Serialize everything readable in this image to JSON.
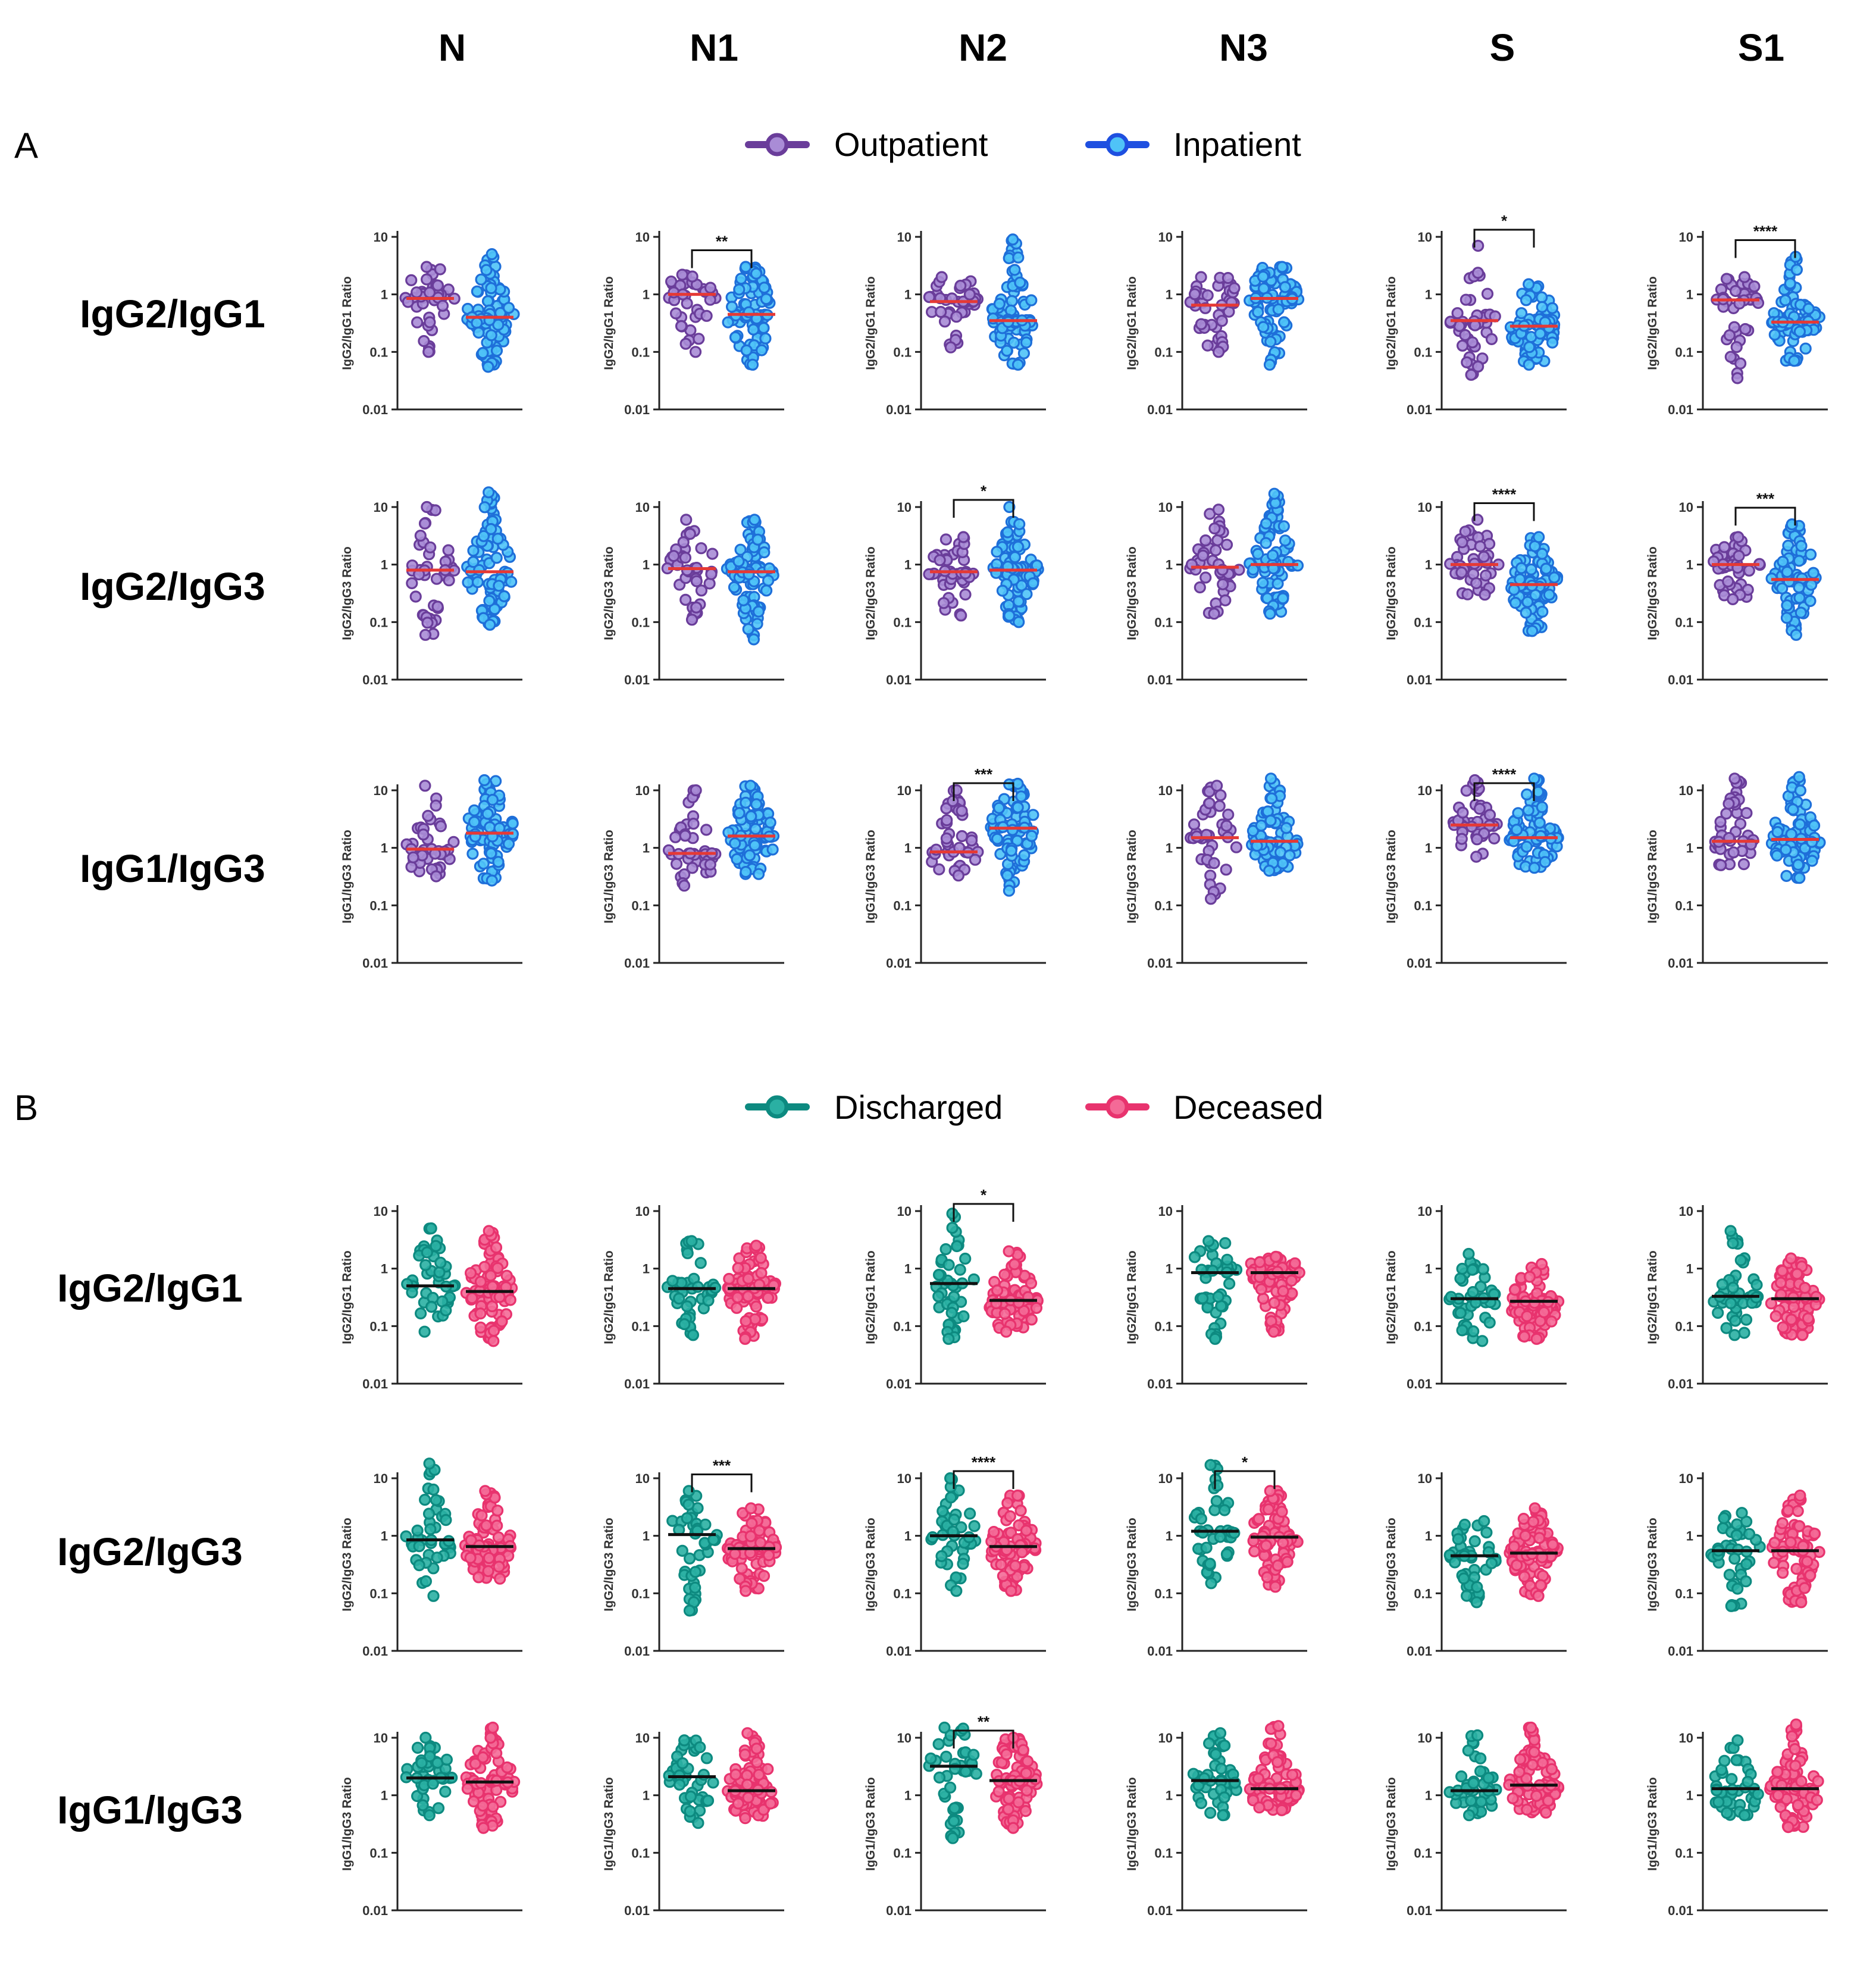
{
  "columns": [
    "N",
    "N1",
    "N2",
    "N3",
    "S",
    "S1"
  ],
  "ratio_rows": [
    "IgG2/IgG1",
    "IgG2/IgG3",
    "IgG1/IgG3"
  ],
  "y_axis_titles": [
    "IgG2/IgG1 Ratio",
    "IgG2/IgG3 Ratio",
    "IgG1/IgG3 Ratio"
  ],
  "y_ticks": [
    "10",
    "1",
    "0.1",
    "0.01"
  ],
  "colors": {
    "outpatient": "#6a3d9a",
    "outpatient_fill": "#a98cd6",
    "inpatient": "#1e6fd9",
    "inpatient_fill": "#4fc3f7",
    "discharged": "#0d8a80",
    "discharged_fill": "#2ab0a3",
    "deceased": "#e8336e",
    "deceased_fill": "#f46a97",
    "median_a": "#e53935",
    "median_b": "#111111"
  },
  "panels": [
    {
      "label": "A",
      "legend": [
        {
          "name": "Outpatient",
          "key": "outpatient"
        },
        {
          "name": "Inpatient",
          "key": "inpatient"
        }
      ]
    },
    {
      "label": "B",
      "legend": [
        {
          "name": "Discharged",
          "key": "discharged"
        },
        {
          "name": "Deceased",
          "key": "deceased"
        }
      ]
    }
  ],
  "chart_data": {
    "type": "scatter",
    "subtype": "dot strip plot with median line",
    "y_scale": "log10",
    "ylim": [
      0.01,
      10
    ],
    "panels": [
      {
        "label": "A",
        "groups": [
          "Outpatient",
          "Inpatient"
        ],
        "median_color": "red",
        "rows": [
          {
            "ratio": "IgG2/IgG1",
            "cells": [
              {
                "col": "N",
                "g1": {
                  "median": 0.85,
                  "min": 0.1,
                  "max": 3
                },
                "g2": {
                  "median": 0.4,
                  "min": 0.055,
                  "max": 5
                },
                "sig": ""
              },
              {
                "col": "N1",
                "g1": {
                  "median": 1.0,
                  "min": 0.1,
                  "max": 2.2
                },
                "g2": {
                  "median": 0.45,
                  "min": 0.06,
                  "max": 3
                },
                "sig": "**"
              },
              {
                "col": "N2",
                "g1": {
                  "median": 0.75,
                  "min": 0.12,
                  "max": 2
                },
                "g2": {
                  "median": 0.35,
                  "min": 0.06,
                  "max": 9
                },
                "sig": ""
              },
              {
                "col": "N3",
                "g1": {
                  "median": 0.65,
                  "min": 0.1,
                  "max": 2
                },
                "g2": {
                  "median": 0.85,
                  "min": 0.06,
                  "max": 3
                },
                "sig": ""
              },
              {
                "col": "S",
                "g1": {
                  "median": 0.35,
                  "min": 0.04,
                  "max": 7
                },
                "g2": {
                  "median": 0.28,
                  "min": 0.06,
                  "max": 1.5
                },
                "sig": "*"
              },
              {
                "col": "S1",
                "g1": {
                  "median": 0.8,
                  "min": 0.035,
                  "max": 2
                },
                "g2": {
                  "median": 0.33,
                  "min": 0.07,
                  "max": 4.5
                },
                "sig": "****"
              }
            ]
          },
          {
            "ratio": "IgG2/IgG3",
            "cells": [
              {
                "col": "N",
                "g1": {
                  "median": 0.8,
                  "min": 0.06,
                  "max": 10
                },
                "g2": {
                  "median": 0.75,
                  "min": 0.09,
                  "max": 18
                },
                "sig": ""
              },
              {
                "col": "N1",
                "g1": {
                  "median": 0.85,
                  "min": 0.11,
                  "max": 6
                },
                "g2": {
                  "median": 0.75,
                  "min": 0.05,
                  "max": 6
                },
                "sig": ""
              },
              {
                "col": "N2",
                "g1": {
                  "median": 0.75,
                  "min": 0.13,
                  "max": 3
                },
                "g2": {
                  "median": 0.8,
                  "min": 0.1,
                  "max": 10
                },
                "sig": "*"
              },
              {
                "col": "N3",
                "g1": {
                  "median": 0.9,
                  "min": 0.14,
                  "max": 9
                },
                "g2": {
                  "median": 1.0,
                  "min": 0.14,
                  "max": 17
                },
                "sig": ""
              },
              {
                "col": "S",
                "g1": {
                  "median": 1.0,
                  "min": 0.3,
                  "max": 6
                },
                "g2": {
                  "median": 0.45,
                  "min": 0.07,
                  "max": 3
                },
                "sig": "****"
              },
              {
                "col": "S1",
                "g1": {
                  "median": 1.0,
                  "min": 0.25,
                  "max": 3
                },
                "g2": {
                  "median": 0.55,
                  "min": 0.06,
                  "max": 5
                },
                "sig": "***"
              }
            ]
          },
          {
            "ratio": "IgG1/IgG3",
            "cells": [
              {
                "col": "N",
                "g1": {
                  "median": 0.95,
                  "min": 0.32,
                  "max": 12
                },
                "g2": {
                  "median": 1.8,
                  "min": 0.27,
                  "max": 15
                },
                "sig": ""
              },
              {
                "col": "N1",
                "g1": {
                  "median": 0.8,
                  "min": 0.22,
                  "max": 10
                },
                "g2": {
                  "median": 1.6,
                  "min": 0.35,
                  "max": 12
                },
                "sig": ""
              },
              {
                "col": "N2",
                "g1": {
                  "median": 0.85,
                  "min": 0.33,
                  "max": 10
                },
                "g2": {
                  "median": 2.2,
                  "min": 0.18,
                  "max": 13
                },
                "sig": "***"
              },
              {
                "col": "N3",
                "g1": {
                  "median": 1.5,
                  "min": 0.13,
                  "max": 12
                },
                "g2": {
                  "median": 1.3,
                  "min": 0.4,
                  "max": 16
                },
                "sig": ""
              },
              {
                "col": "S",
                "g1": {
                  "median": 2.5,
                  "min": 0.7,
                  "max": 15
                },
                "g2": {
                  "median": 1.5,
                  "min": 0.45,
                  "max": 16
                },
                "sig": "****"
              },
              {
                "col": "S1",
                "g1": {
                  "median": 1.3,
                  "min": 0.5,
                  "max": 16
                },
                "g2": {
                  "median": 1.4,
                  "min": 0.3,
                  "max": 17
                },
                "sig": ""
              }
            ]
          }
        ]
      },
      {
        "label": "B",
        "groups": [
          "Discharged",
          "Deceased"
        ],
        "median_color": "black",
        "rows": [
          {
            "ratio": "IgG2/IgG1",
            "cells": [
              {
                "col": "N",
                "g1": {
                  "median": 0.5,
                  "min": 0.08,
                  "max": 5
                },
                "g2": {
                  "median": 0.4,
                  "min": 0.055,
                  "max": 4.5
                },
                "sig": ""
              },
              {
                "col": "N1",
                "g1": {
                  "median": 0.45,
                  "min": 0.07,
                  "max": 3
                },
                "g2": {
                  "median": 0.45,
                  "min": 0.06,
                  "max": 2.5
                },
                "sig": ""
              },
              {
                "col": "N2",
                "g1": {
                  "median": 0.55,
                  "min": 0.06,
                  "max": 9
                },
                "g2": {
                  "median": 0.28,
                  "min": 0.08,
                  "max": 2
                },
                "sig": "*"
              },
              {
                "col": "N3",
                "g1": {
                  "median": 0.85,
                  "min": 0.06,
                  "max": 3
                },
                "g2": {
                  "median": 0.85,
                  "min": 0.08,
                  "max": 1.6
                },
                "sig": ""
              },
              {
                "col": "S",
                "g1": {
                  "median": 0.3,
                  "min": 0.055,
                  "max": 1.8
                },
                "g2": {
                  "median": 0.27,
                  "min": 0.06,
                  "max": 1.2
                },
                "sig": ""
              },
              {
                "col": "S1",
                "g1": {
                  "median": 0.33,
                  "min": 0.07,
                  "max": 4.5
                },
                "g2": {
                  "median": 0.3,
                  "min": 0.07,
                  "max": 1.5
                },
                "sig": ""
              }
            ]
          },
          {
            "ratio": "IgG2/IgG3",
            "cells": [
              {
                "col": "N",
                "g1": {
                  "median": 0.85,
                  "min": 0.09,
                  "max": 18
                },
                "g2": {
                  "median": 0.65,
                  "min": 0.18,
                  "max": 6
                },
                "sig": ""
              },
              {
                "col": "N1",
                "g1": {
                  "median": 1.05,
                  "min": 0.05,
                  "max": 6
                },
                "g2": {
                  "median": 0.6,
                  "min": 0.11,
                  "max": 3
                },
                "sig": "***"
              },
              {
                "col": "N2",
                "g1": {
                  "median": 1.0,
                  "min": 0.11,
                  "max": 10
                },
                "g2": {
                  "median": 0.65,
                  "min": 0.11,
                  "max": 5
                },
                "sig": "****"
              },
              {
                "col": "N3",
                "g1": {
                  "median": 1.2,
                  "min": 0.15,
                  "max": 17
                },
                "g2": {
                  "median": 0.95,
                  "min": 0.13,
                  "max": 6
                },
                "sig": "*"
              },
              {
                "col": "S",
                "g1": {
                  "median": 0.45,
                  "min": 0.07,
                  "max": 1.8
                },
                "g2": {
                  "median": 0.5,
                  "min": 0.09,
                  "max": 3
                },
                "sig": ""
              },
              {
                "col": "S1",
                "g1": {
                  "median": 0.55,
                  "min": 0.06,
                  "max": 2.5
                },
                "g2": {
                  "median": 0.55,
                  "min": 0.07,
                  "max": 5
                },
                "sig": ""
              }
            ]
          },
          {
            "ratio": "IgG1/IgG3",
            "cells": [
              {
                "col": "N",
                "g1": {
                  "median": 2.0,
                  "min": 0.45,
                  "max": 10
                },
                "g2": {
                  "median": 1.7,
                  "min": 0.27,
                  "max": 15
                },
                "sig": ""
              },
              {
                "col": "N1",
                "g1": {
                  "median": 2.1,
                  "min": 0.33,
                  "max": 9
                },
                "g2": {
                  "median": 1.2,
                  "min": 0.4,
                  "max": 12
                },
                "sig": ""
              },
              {
                "col": "N2",
                "g1": {
                  "median": 3.2,
                  "min": 0.18,
                  "max": 15
                },
                "g2": {
                  "median": 1.8,
                  "min": 0.27,
                  "max": 10
                },
                "sig": "**"
              },
              {
                "col": "N3",
                "g1": {
                  "median": 1.8,
                  "min": 0.45,
                  "max": 12
                },
                "g2": {
                  "median": 1.3,
                  "min": 0.55,
                  "max": 16
                },
                "sig": ""
              },
              {
                "col": "S",
                "g1": {
                  "median": 1.2,
                  "min": 0.45,
                  "max": 11
                },
                "g2": {
                  "median": 1.5,
                  "min": 0.5,
                  "max": 15
                },
                "sig": ""
              },
              {
                "col": "S1",
                "g1": {
                  "median": 1.3,
                  "min": 0.45,
                  "max": 9
                },
                "g2": {
                  "median": 1.3,
                  "min": 0.28,
                  "max": 17
                },
                "sig": ""
              }
            ]
          }
        ]
      }
    ]
  }
}
